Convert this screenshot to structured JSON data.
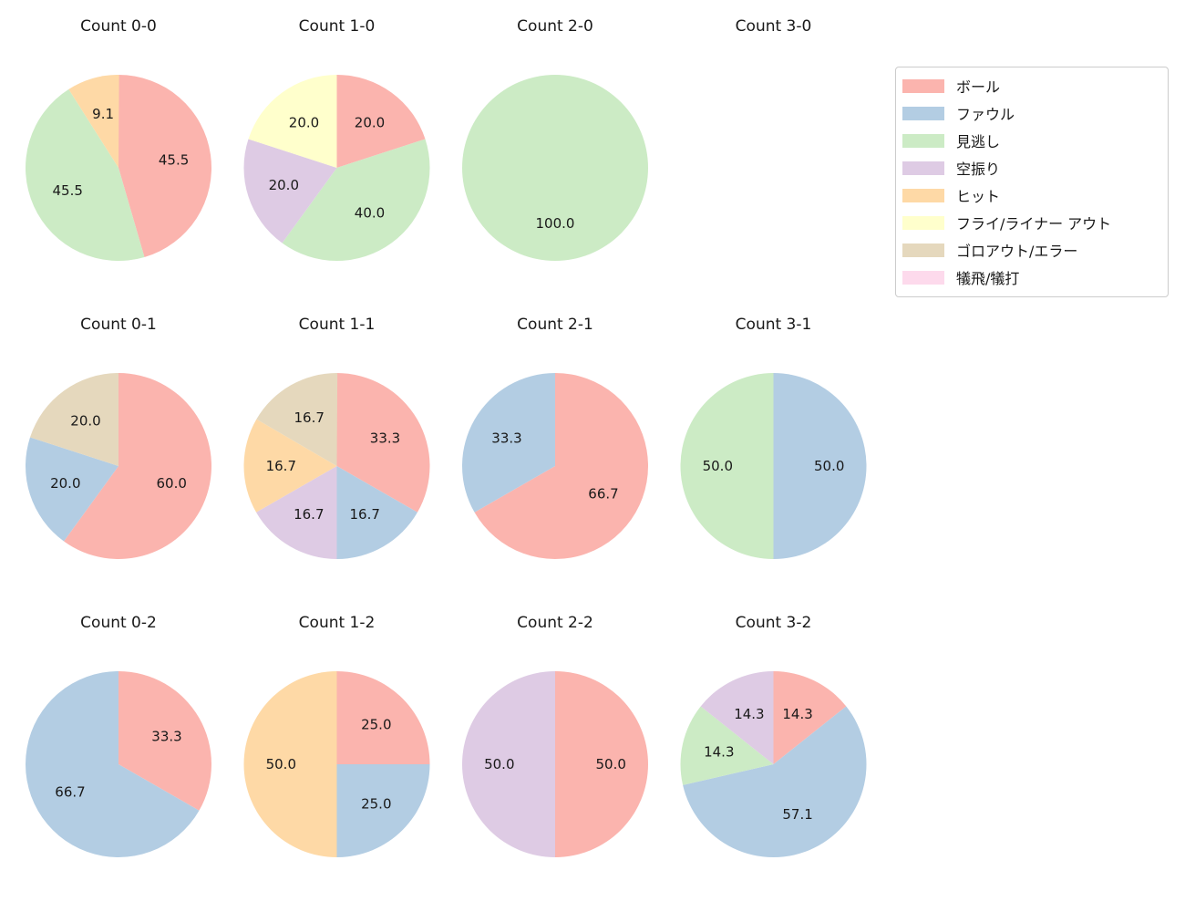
{
  "figure": {
    "background": "#ffffff",
    "text_color": "#191919"
  },
  "legend": {
    "border_color": "#cccccc",
    "entries": [
      {
        "key": "ball",
        "label": "ボール",
        "color": "#fbb4ae"
      },
      {
        "key": "foul",
        "label": "ファウル",
        "color": "#b3cde3"
      },
      {
        "key": "called-strike",
        "label": "見逃し",
        "color": "#ccebc5"
      },
      {
        "key": "swinging-strike",
        "label": "空振り",
        "color": "#decbe4"
      },
      {
        "key": "hit",
        "label": "ヒット",
        "color": "#fed9a6"
      },
      {
        "key": "fly-liner-out",
        "label": "フライ/ライナー アウト",
        "color": "#ffffcc"
      },
      {
        "key": "groundout-error",
        "label": "ゴロアウト/エラー",
        "color": "#e5d8bd"
      },
      {
        "key": "sac-fly-bunt",
        "label": "犠飛/犠打",
        "color": "#fddaec"
      }
    ]
  },
  "chart_data": {
    "type": "pie",
    "layout": "4 columns x 3 rows of pie charts; legend top-right",
    "start_angle_deg": 90,
    "direction": "clockwise",
    "label_format": "percent with one decimal, placed at 0.6 radius",
    "categories": [
      "ボール",
      "ファウル",
      "見逃し",
      "空振り",
      "ヒット",
      "フライ/ライナー アウト",
      "ゴロアウト/エラー",
      "犠飛/犠打"
    ],
    "pies": [
      {
        "title": "Count 0-0",
        "row": 0,
        "col": 0,
        "slices": [
          {
            "category": "ボール",
            "legend_index": 0,
            "value": 45.5,
            "label": "45.5"
          },
          {
            "category": "見逃し",
            "legend_index": 2,
            "value": 45.5,
            "label": "45.5"
          },
          {
            "category": "ヒット",
            "legend_index": 4,
            "value": 9.1,
            "label": "9.1"
          }
        ]
      },
      {
        "title": "Count 1-0",
        "row": 0,
        "col": 1,
        "slices": [
          {
            "category": "ボール",
            "legend_index": 0,
            "value": 20.0,
            "label": "20.0"
          },
          {
            "category": "見逃し",
            "legend_index": 2,
            "value": 40.0,
            "label": "40.0"
          },
          {
            "category": "空振り",
            "legend_index": 3,
            "value": 20.0,
            "label": "20.0"
          },
          {
            "category": "フライ/ライナー アウト",
            "legend_index": 5,
            "value": 20.0,
            "label": "20.0"
          }
        ]
      },
      {
        "title": "Count 2-0",
        "row": 0,
        "col": 2,
        "slices": [
          {
            "category": "見逃し",
            "legend_index": 2,
            "value": 100.0,
            "label": "100.0"
          }
        ]
      },
      {
        "title": "Count 3-0",
        "row": 0,
        "col": 3,
        "slices": []
      },
      {
        "title": "Count 0-1",
        "row": 1,
        "col": 0,
        "slices": [
          {
            "category": "ボール",
            "legend_index": 0,
            "value": 60.0,
            "label": "60.0"
          },
          {
            "category": "ファウル",
            "legend_index": 1,
            "value": 20.0,
            "label": "20.0"
          },
          {
            "category": "ゴロアウト/エラー",
            "legend_index": 6,
            "value": 20.0,
            "label": "20.0"
          }
        ]
      },
      {
        "title": "Count 1-1",
        "row": 1,
        "col": 1,
        "slices": [
          {
            "category": "ボール",
            "legend_index": 0,
            "value": 33.3,
            "label": "33.3"
          },
          {
            "category": "ファウル",
            "legend_index": 1,
            "value": 16.7,
            "label": "16.7"
          },
          {
            "category": "空振り",
            "legend_index": 3,
            "value": 16.7,
            "label": "16.7"
          },
          {
            "category": "ヒット",
            "legend_index": 4,
            "value": 16.7,
            "label": "16.7"
          },
          {
            "category": "ゴロアウト/エラー",
            "legend_index": 6,
            "value": 16.7,
            "label": "16.7"
          }
        ]
      },
      {
        "title": "Count 2-1",
        "row": 1,
        "col": 2,
        "slices": [
          {
            "category": "ボール",
            "legend_index": 0,
            "value": 66.7,
            "label": "66.7"
          },
          {
            "category": "ファウル",
            "legend_index": 1,
            "value": 33.3,
            "label": "33.3"
          }
        ]
      },
      {
        "title": "Count 3-1",
        "row": 1,
        "col": 3,
        "slices": [
          {
            "category": "ファウル",
            "legend_index": 1,
            "value": 50.0,
            "label": "50.0"
          },
          {
            "category": "見逃し",
            "legend_index": 2,
            "value": 50.0,
            "label": "50.0"
          }
        ]
      },
      {
        "title": "Count 0-2",
        "row": 2,
        "col": 0,
        "slices": [
          {
            "category": "ボール",
            "legend_index": 0,
            "value": 33.3,
            "label": "33.3"
          },
          {
            "category": "ファウル",
            "legend_index": 1,
            "value": 66.7,
            "label": "66.7"
          }
        ]
      },
      {
        "title": "Count 1-2",
        "row": 2,
        "col": 1,
        "slices": [
          {
            "category": "ボール",
            "legend_index": 0,
            "value": 25.0,
            "label": "25.0"
          },
          {
            "category": "ファウル",
            "legend_index": 1,
            "value": 25.0,
            "label": "25.0"
          },
          {
            "category": "ヒット",
            "legend_index": 4,
            "value": 50.0,
            "label": "50.0"
          }
        ]
      },
      {
        "title": "Count 2-2",
        "row": 2,
        "col": 2,
        "slices": [
          {
            "category": "ボール",
            "legend_index": 0,
            "value": 50.0,
            "label": "50.0"
          },
          {
            "category": "空振り",
            "legend_index": 3,
            "value": 50.0,
            "label": "50.0"
          }
        ]
      },
      {
        "title": "Count 3-2",
        "row": 2,
        "col": 3,
        "slices": [
          {
            "category": "ボール",
            "legend_index": 0,
            "value": 14.3,
            "label": "14.3"
          },
          {
            "category": "ファウル",
            "legend_index": 1,
            "value": 57.1,
            "label": "57.1"
          },
          {
            "category": "見逃し",
            "legend_index": 2,
            "value": 14.3,
            "label": "14.3"
          },
          {
            "category": "空振り",
            "legend_index": 3,
            "value": 14.3,
            "label": "14.3"
          }
        ]
      }
    ]
  }
}
